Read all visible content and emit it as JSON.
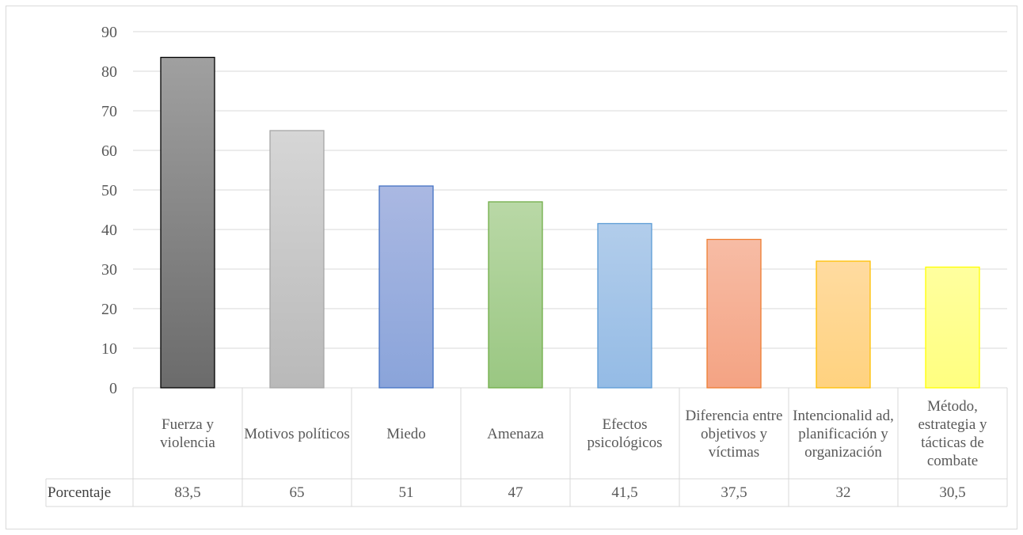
{
  "chart_data": {
    "type": "bar",
    "categories": [
      "Fuerza y violencia",
      "Motivos políticos",
      "Miedo",
      "Amenaza",
      "Efectos psicológicos",
      "Diferencia entre objetivos y víctimas",
      "Intencionalid ad, planificación y organización",
      "Método, estrategia y tácticas de combate"
    ],
    "series": [
      {
        "name": "Porcentaje",
        "values": [
          83.5,
          65,
          51,
          47,
          41.5,
          37.5,
          32,
          30.5
        ],
        "value_labels": [
          "83,5",
          "65",
          "51",
          "47",
          "41,5",
          "37,5",
          "32",
          "30,5"
        ]
      }
    ],
    "ylim": [
      0,
      90
    ],
    "yticks": [
      0,
      10,
      20,
      30,
      40,
      50,
      60,
      70,
      80,
      90
    ],
    "grid": true,
    "legend": "data-table-below",
    "bar_colors": [
      [
        "#a0a0a0",
        "#6b6b6b",
        "#000000"
      ],
      [
        "#d6d6d6",
        "#b9b9b9",
        "#a6a6a6"
      ],
      [
        "#aab8e2",
        "#8aa4da",
        "#4472c4"
      ],
      [
        "#b9d8a6",
        "#9ac782",
        "#70ad47"
      ],
      [
        "#b2cdeb",
        "#94bbe5",
        "#5b9bd5"
      ],
      [
        "#f7bca5",
        "#f4a383",
        "#ed7d31"
      ],
      [
        "#ffdba0",
        "#ffd27f",
        "#ffc000"
      ],
      [
        "#ffff9e",
        "#ffff80",
        "#ffff00"
      ]
    ]
  }
}
